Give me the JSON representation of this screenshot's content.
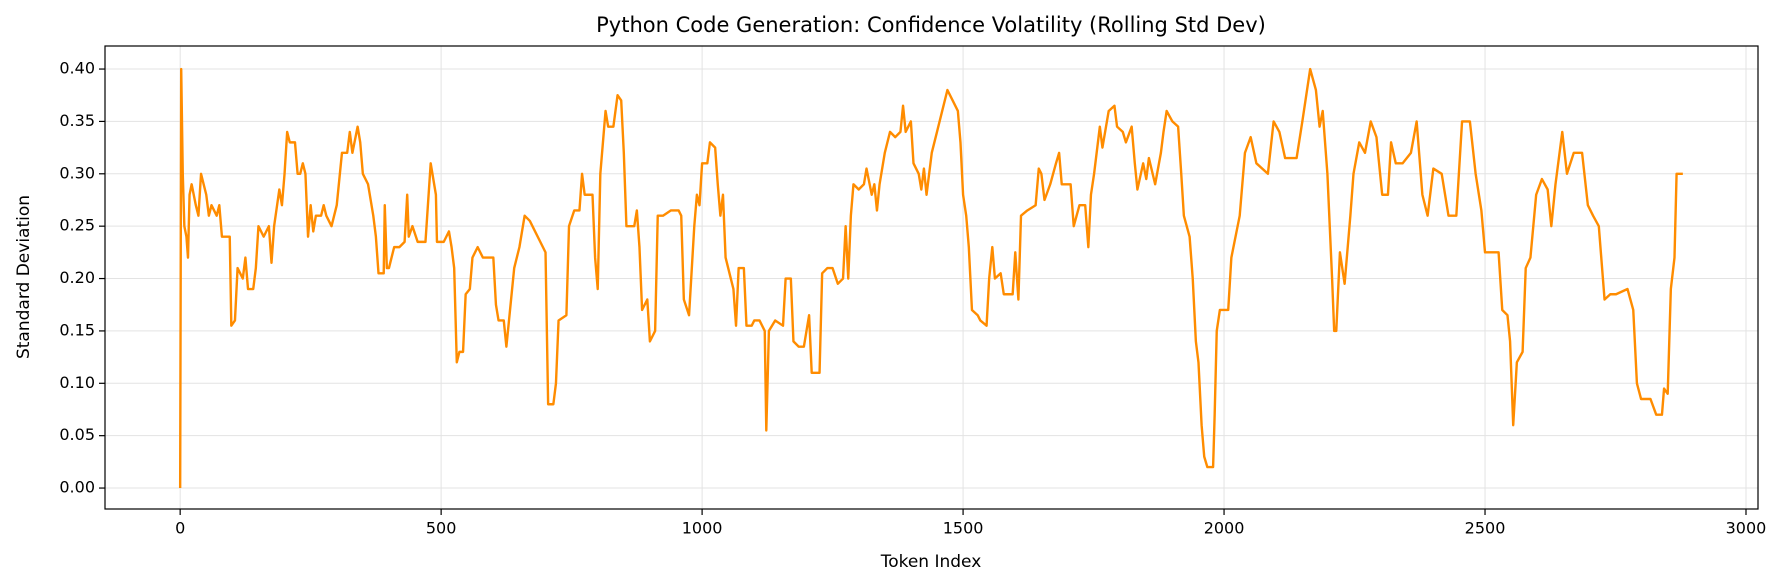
{
  "chart_data": {
    "type": "line",
    "title": "Python Code Generation: Confidence Volatility (Rolling Std Dev)",
    "xlabel": "Token Index",
    "ylabel": "Standard Deviation",
    "color": "#ff8c00",
    "grid": true,
    "xlim": [
      -144,
      3023
    ],
    "ylim": [
      -0.02,
      0.422
    ],
    "xticks": [
      0,
      500,
      1000,
      1500,
      2000,
      2500,
      3000
    ],
    "yticks": [
      {
        "value": 0,
        "label": "0.00"
      },
      {
        "value": 0.05,
        "label": "0.05"
      },
      {
        "value": 0.1,
        "label": "0.10"
      },
      {
        "value": 0.15,
        "label": "0.15"
      },
      {
        "value": 0.2,
        "label": "0.20"
      },
      {
        "value": 0.25,
        "label": "0.25"
      },
      {
        "value": 0.3,
        "label": "0.30"
      },
      {
        "value": 0.35,
        "label": "0.35"
      },
      {
        "value": 0.4,
        "label": "0.40"
      }
    ],
    "x": [
      0,
      2,
      5,
      8,
      12,
      15,
      18,
      22,
      30,
      35,
      40,
      50,
      55,
      60,
      70,
      75,
      80,
      95,
      98,
      105,
      110,
      120,
      125,
      130,
      140,
      145,
      150,
      160,
      170,
      175,
      180,
      190,
      195,
      200,
      205,
      210,
      220,
      225,
      230,
      235,
      240,
      245,
      250,
      255,
      260,
      270,
      275,
      280,
      290,
      300,
      310,
      320,
      325,
      330,
      340,
      345,
      350,
      360,
      370,
      375,
      380,
      390,
      392,
      396,
      400,
      410,
      420,
      430,
      435,
      438,
      445,
      455,
      470,
      480,
      490,
      492,
      505,
      510,
      515,
      520,
      525,
      530,
      535,
      542,
      547,
      555,
      560,
      570,
      580,
      590,
      600,
      605,
      610,
      620,
      625,
      630,
      640,
      650,
      660,
      670,
      680,
      690,
      700,
      705,
      715,
      720,
      725,
      740,
      745,
      755,
      765,
      770,
      775,
      790,
      795,
      800,
      805,
      810,
      815,
      820,
      830,
      838,
      845,
      850,
      855,
      870,
      875,
      880,
      885,
      895,
      900,
      910,
      915,
      925,
      940,
      955,
      960,
      965,
      975,
      985,
      990,
      995,
      1000,
      1010,
      1015,
      1025,
      1030,
      1035,
      1040,
      1045,
      1055,
      1060,
      1065,
      1070,
      1080,
      1085,
      1095,
      1100,
      1110,
      1120,
      1123,
      1128,
      1140,
      1155,
      1160,
      1170,
      1175,
      1185,
      1195,
      1200,
      1205,
      1210,
      1225,
      1230,
      1240,
      1250,
      1260,
      1270,
      1275,
      1280,
      1285,
      1290,
      1300,
      1310,
      1315,
      1325,
      1330,
      1335,
      1340,
      1350,
      1360,
      1370,
      1380,
      1385,
      1390,
      1400,
      1405,
      1415,
      1420,
      1425,
      1430,
      1440,
      1450,
      1460,
      1470,
      1480,
      1490,
      1495,
      1500,
      1506,
      1511,
      1517,
      1528,
      1533,
      1545,
      1550,
      1556,
      1561,
      1572,
      1578,
      1595,
      1600,
      1606,
      1611,
      1623,
      1639,
      1645,
      1650,
      1656,
      1667,
      1678,
      1684,
      1689,
      1706,
      1712,
      1723,
      1734,
      1740,
      1745,
      1751,
      1762,
      1767,
      1779,
      1790,
      1795,
      1806,
      1812,
      1823,
      1829,
      1834,
      1845,
      1851,
      1856,
      1868,
      1879,
      1884,
      1890,
      1901,
      1912,
      1918,
      1923,
      1934,
      1940,
      1946,
      1951,
      1957,
      1962,
      1968,
      1979,
      1982,
      1986,
      1992,
      2008,
      2014,
      2030,
      2040,
      2051,
      2062,
      2084,
      2095,
      2106,
      2117,
      2139,
      2150,
      2165,
      2176,
      2183,
      2189,
      2198,
      2207,
      2211,
      2215,
      2222,
      2231,
      2242,
      2248,
      2259,
      2270,
      2281,
      2292,
      2303,
      2314,
      2320,
      2329,
      2342,
      2358,
      2369,
      2380,
      2390,
      2401,
      2417,
      2430,
      2445,
      2456,
      2471,
      2482,
      2493,
      2500,
      2526,
      2533,
      2543,
      2548,
      2554,
      2561,
      2572,
      2578,
      2587,
      2598,
      2609,
      2620,
      2627,
      2635,
      2648,
      2657,
      2670,
      2686,
      2697,
      2707,
      2718,
      2729,
      2740,
      2751,
      2773,
      2784,
      2791,
      2799,
      2817,
      2828,
      2839,
      2843,
      2850,
      2856,
      2863,
      2867,
      2879
    ],
    "values": [
      0,
      0.4,
      0.3,
      0.25,
      0.24,
      0.22,
      0.28,
      0.29,
      0.27,
      0.26,
      0.3,
      0.28,
      0.26,
      0.27,
      0.26,
      0.27,
      0.24,
      0.24,
      0.155,
      0.16,
      0.21,
      0.2,
      0.22,
      0.19,
      0.19,
      0.21,
      0.25,
      0.24,
      0.25,
      0.215,
      0.25,
      0.285,
      0.27,
      0.3,
      0.34,
      0.33,
      0.33,
      0.3,
      0.3,
      0.31,
      0.3,
      0.24,
      0.27,
      0.245,
      0.26,
      0.26,
      0.27,
      0.26,
      0.25,
      0.27,
      0.32,
      0.32,
      0.34,
      0.32,
      0.345,
      0.33,
      0.3,
      0.29,
      0.26,
      0.24,
      0.205,
      0.205,
      0.27,
      0.21,
      0.21,
      0.23,
      0.23,
      0.235,
      0.28,
      0.24,
      0.25,
      0.235,
      0.235,
      0.31,
      0.28,
      0.235,
      0.235,
      0.24,
      0.245,
      0.23,
      0.21,
      0.12,
      0.13,
      0.13,
      0.185,
      0.19,
      0.22,
      0.23,
      0.22,
      0.22,
      0.22,
      0.175,
      0.16,
      0.16,
      0.135,
      0.16,
      0.21,
      0.23,
      0.26,
      0.255,
      0.245,
      0.235,
      0.225,
      0.08,
      0.08,
      0.1,
      0.16,
      0.165,
      0.25,
      0.265,
      0.265,
      0.3,
      0.28,
      0.28,
      0.22,
      0.19,
      0.3,
      0.33,
      0.36,
      0.345,
      0.345,
      0.375,
      0.37,
      0.32,
      0.25,
      0.25,
      0.265,
      0.23,
      0.17,
      0.18,
      0.14,
      0.15,
      0.26,
      0.26,
      0.265,
      0.265,
      0.26,
      0.18,
      0.165,
      0.25,
      0.28,
      0.27,
      0.31,
      0.31,
      0.33,
      0.325,
      0.29,
      0.26,
      0.28,
      0.22,
      0.2,
      0.19,
      0.155,
      0.21,
      0.21,
      0.155,
      0.155,
      0.16,
      0.16,
      0.15,
      0.055,
      0.15,
      0.16,
      0.155,
      0.2,
      0.2,
      0.14,
      0.135,
      0.135,
      0.15,
      0.165,
      0.11,
      0.11,
      0.205,
      0.21,
      0.21,
      0.195,
      0.2,
      0.25,
      0.2,
      0.26,
      0.29,
      0.285,
      0.29,
      0.305,
      0.28,
      0.29,
      0.265,
      0.29,
      0.32,
      0.34,
      0.335,
      0.34,
      0.365,
      0.34,
      0.35,
      0.31,
      0.3,
      0.285,
      0.305,
      0.28,
      0.32,
      0.34,
      0.36,
      0.38,
      0.37,
      0.36,
      0.33,
      0.28,
      0.26,
      0.23,
      0.17,
      0.165,
      0.16,
      0.155,
      0.2,
      0.23,
      0.2,
      0.205,
      0.185,
      0.185,
      0.225,
      0.18,
      0.26,
      0.265,
      0.27,
      0.305,
      0.3,
      0.275,
      0.29,
      0.31,
      0.32,
      0.29,
      0.29,
      0.25,
      0.27,
      0.27,
      0.23,
      0.28,
      0.3,
      0.345,
      0.325,
      0.36,
      0.365,
      0.345,
      0.34,
      0.33,
      0.345,
      0.31,
      0.285,
      0.31,
      0.295,
      0.315,
      0.29,
      0.32,
      0.34,
      0.36,
      0.35,
      0.345,
      0.3,
      0.26,
      0.24,
      0.2,
      0.14,
      0.12,
      0.06,
      0.03,
      0.02,
      0.02,
      0.07,
      0.15,
      0.17,
      0.17,
      0.22,
      0.26,
      0.32,
      0.335,
      0.31,
      0.3,
      0.35,
      0.34,
      0.315,
      0.315,
      0.35,
      0.4,
      0.38,
      0.345,
      0.36,
      0.3,
      0.2,
      0.15,
      0.15,
      0.225,
      0.195,
      0.26,
      0.3,
      0.33,
      0.32,
      0.35,
      0.335,
      0.28,
      0.28,
      0.33,
      0.31,
      0.31,
      0.32,
      0.35,
      0.28,
      0.26,
      0.305,
      0.3,
      0.26,
      0.26,
      0.35,
      0.35,
      0.3,
      0.265,
      0.225,
      0.225,
      0.17,
      0.165,
      0.14,
      0.06,
      0.12,
      0.13,
      0.21,
      0.22,
      0.28,
      0.295,
      0.285,
      0.25,
      0.29,
      0.34,
      0.3,
      0.32,
      0.32,
      0.27,
      0.26,
      0.25,
      0.18,
      0.185,
      0.185,
      0.19,
      0.17,
      0.1,
      0.085,
      0.085,
      0.07,
      0.07,
      0.095,
      0.09,
      0.19,
      0.22,
      0.3,
      0.3
    ]
  }
}
